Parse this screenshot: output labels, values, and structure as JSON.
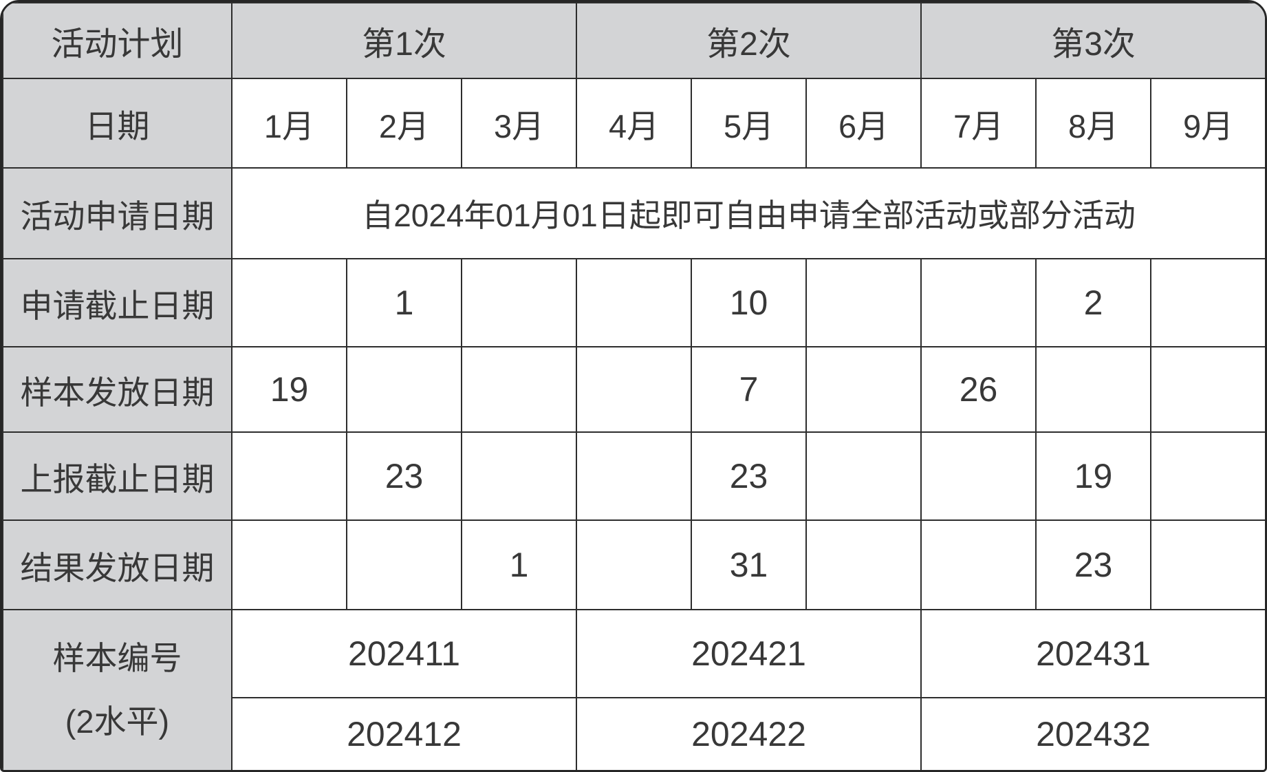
{
  "table": {
    "corner_label": "活动计划",
    "groups": [
      {
        "label": "第1次"
      },
      {
        "label": "第2次"
      },
      {
        "label": "第3次"
      }
    ],
    "date_header": {
      "label": "日期",
      "months": [
        "1月",
        "2月",
        "3月",
        "4月",
        "5月",
        "6月",
        "7月",
        "8月",
        "9月"
      ]
    },
    "application_row": {
      "label": "活动申请日期",
      "text": "自2024年01月01日起即可自由申请全部活动或部分活动"
    },
    "date_rows": [
      {
        "label": "申请截止日期",
        "cells": [
          "",
          "1",
          "",
          "",
          "10",
          "",
          "",
          "2",
          ""
        ]
      },
      {
        "label": "样本发放日期",
        "cells": [
          "19",
          "",
          "",
          "",
          "7",
          "",
          "26",
          "",
          ""
        ]
      },
      {
        "label": "上报截止日期",
        "cells": [
          "",
          "23",
          "",
          "",
          "23",
          "",
          "",
          "19",
          ""
        ]
      },
      {
        "label": "结果发放日期",
        "cells": [
          "",
          "",
          "1",
          "",
          "31",
          "",
          "",
          "23",
          ""
        ]
      }
    ],
    "sample_section": {
      "label_line1": "样本编号",
      "label_line2": "(2水平)",
      "row1": [
        "202411",
        "202421",
        "202431"
      ],
      "row2": [
        "202412",
        "202422",
        "202432"
      ]
    },
    "colors": {
      "header_bg": "#d3d4d6",
      "grid_line": "#2d2d2d",
      "text": "#383838"
    }
  }
}
